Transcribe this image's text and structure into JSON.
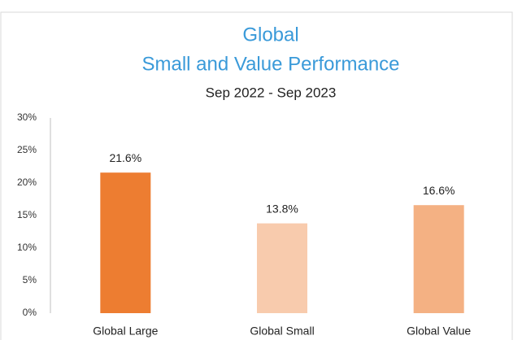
{
  "chart_data": {
    "type": "bar",
    "title": [
      "Global",
      "Small and Value Performance"
    ],
    "subtitle": "Sep 2022 - Sep 2023",
    "categories": [
      "Global Large",
      "Global Small",
      "Global Value"
    ],
    "values": [
      21.6,
      13.8,
      16.6
    ],
    "value_labels": [
      "21.6%",
      "13.8%",
      "16.6%"
    ],
    "colors": [
      "#ed7d31",
      "#f8cbad",
      "#f4b183"
    ],
    "ylim": [
      0,
      30
    ],
    "yticks": [
      {
        "value": 0,
        "label": "0%"
      },
      {
        "value": 5,
        "label": "5%"
      },
      {
        "value": 10,
        "label": "10%"
      },
      {
        "value": 15,
        "label": "15%"
      },
      {
        "value": 20,
        "label": "20%"
      },
      {
        "value": 25,
        "label": "25%"
      },
      {
        "value": 30,
        "label": "30%"
      }
    ],
    "grid": false
  }
}
